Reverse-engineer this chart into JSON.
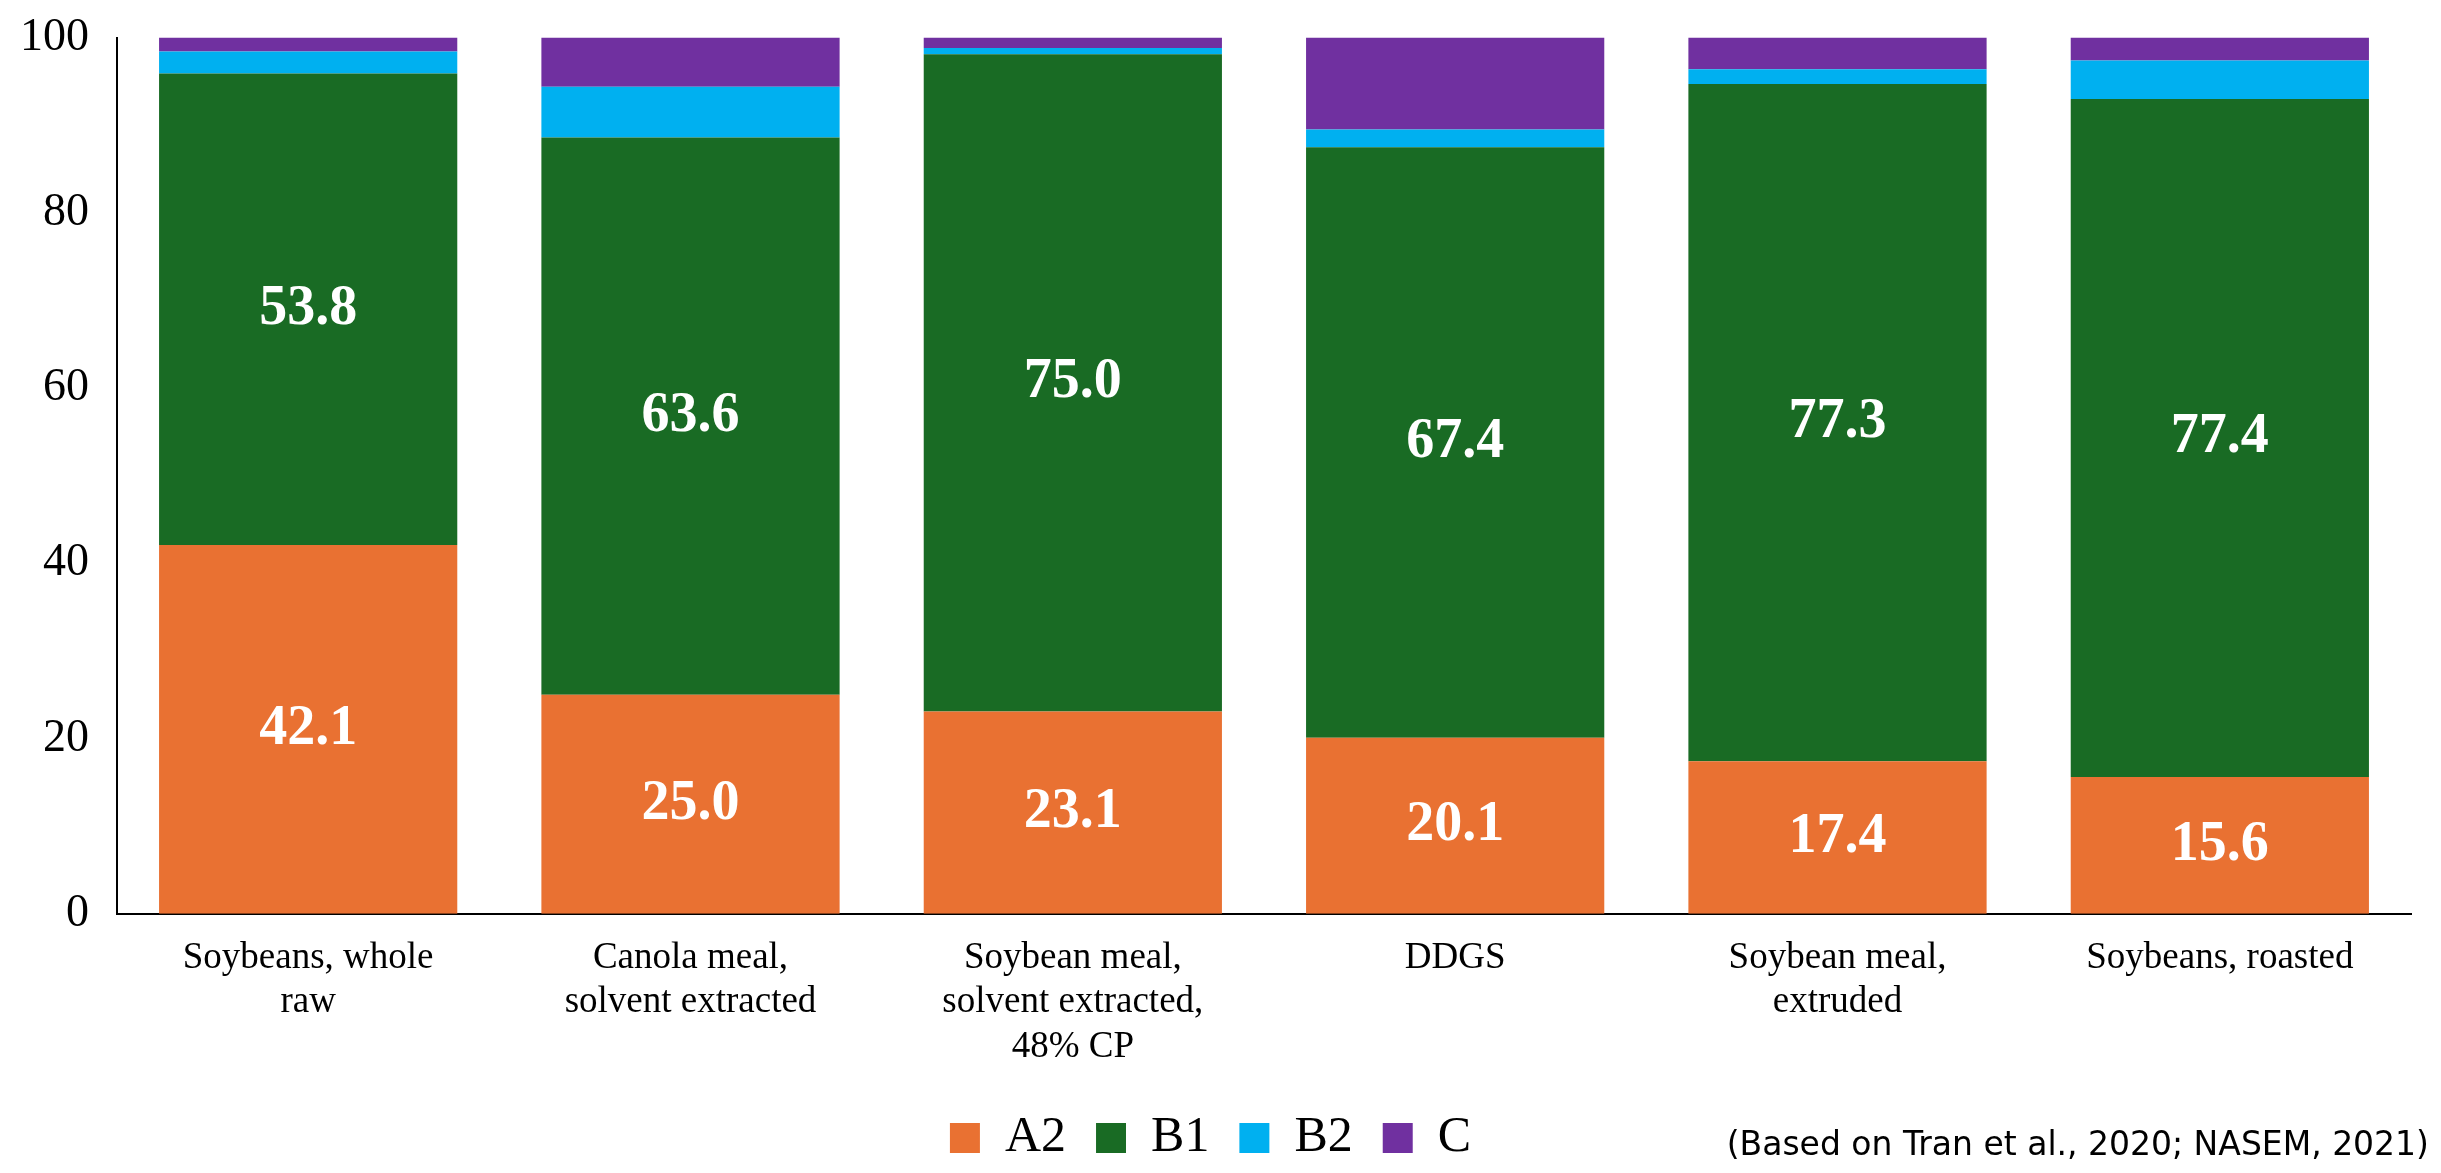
{
  "chart_data": {
    "type": "bar",
    "stacked": true,
    "categories": [
      "Soybeans, whole raw",
      "Canola meal, solvent extracted",
      "Soybean meal, solvent extracted, 48% CP",
      "DDGS",
      "Soybean meal, extruded",
      "Soybeans, roasted"
    ],
    "series": [
      {
        "name": "A2",
        "color": "#e97132",
        "values": [
          42.1,
          25.0,
          23.1,
          20.1,
          17.4,
          15.6
        ],
        "value_labels": [
          "42.1",
          "25.0",
          "23.1",
          "20.1",
          "17.4",
          "15.6"
        ]
      },
      {
        "name": "B1",
        "color": "#196b24",
        "values": [
          53.8,
          63.6,
          75.0,
          67.4,
          77.3,
          77.4
        ],
        "value_labels": [
          "53.8",
          "63.6",
          "75.0",
          "67.4",
          "77.3",
          "77.4"
        ]
      },
      {
        "name": "B2",
        "color": "#00b0f0",
        "values": [
          2.5,
          5.8,
          0.7,
          2.0,
          1.7,
          4.4
        ]
      },
      {
        "name": "C",
        "color": "#7030a0",
        "values": [
          1.6,
          5.6,
          1.2,
          10.5,
          3.6,
          2.6
        ]
      }
    ],
    "ylim": [
      0,
      100
    ],
    "yticks": [
      0,
      20,
      40,
      60,
      80,
      100
    ],
    "grid": false,
    "legend": "bottom",
    "annotations": [
      "(Based on Tran et al., 2020; NASEM, 2021)"
    ]
  }
}
